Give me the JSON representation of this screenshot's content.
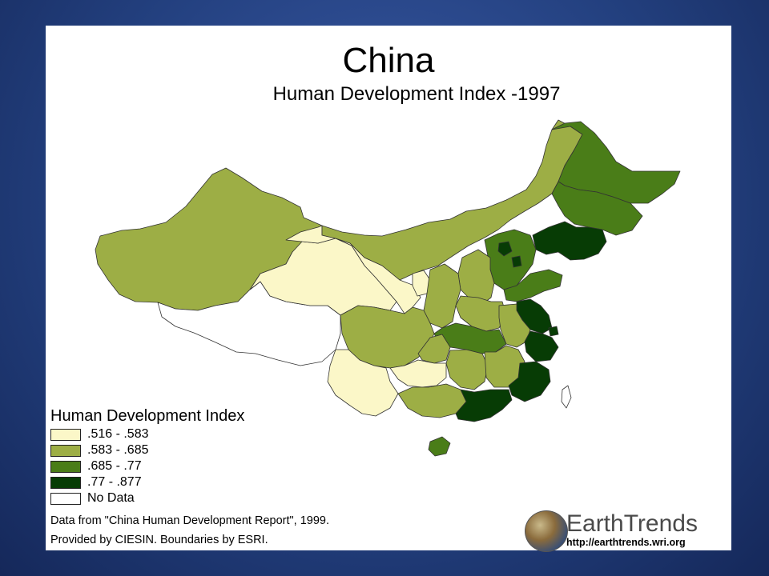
{
  "title": "China",
  "subtitle": "Human Development Index -1997",
  "legend": {
    "title": "Human Development Index",
    "items": [
      {
        "label": ".516 - .583",
        "color": "#fbf7c8"
      },
      {
        "label": ".583 - .685",
        "color": "#9dae45"
      },
      {
        "label": ".685 - .77",
        "color": "#4a7d18"
      },
      {
        "label": ".77 - .877",
        "color": "#073c05"
      },
      {
        "label": "No Data",
        "color": "#ffffff"
      }
    ]
  },
  "source": {
    "line1": "Data from \"China Human Development Report\", 1999.",
    "line2": "Provided by CIESIN.  Boundaries by ESRI."
  },
  "branding": {
    "name": "EarthTrends",
    "url": "http://earthtrends.wri.org"
  },
  "colors": {
    "background": "#23407f",
    "panel": "#ffffff",
    "class1": "#fbf7c8",
    "class2": "#9dae45",
    "class3": "#4a7d18",
    "class4": "#073c05",
    "no_data": "#ffffff",
    "border": "#333333"
  }
}
